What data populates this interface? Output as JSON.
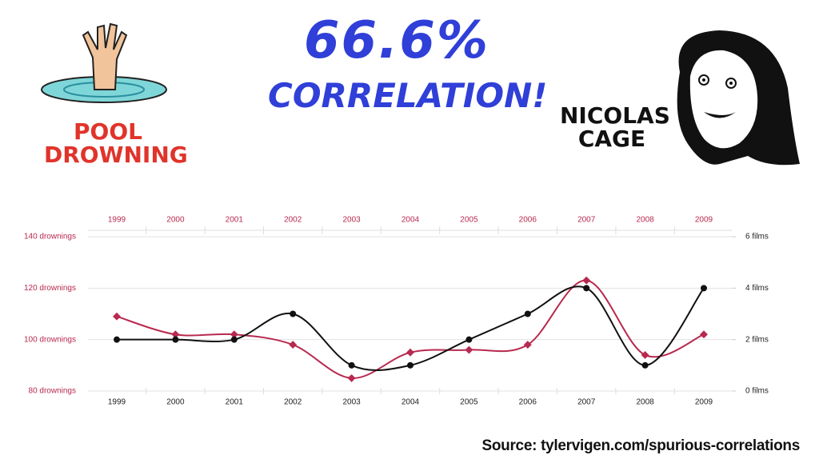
{
  "chart_data": {
    "type": "line",
    "title": "66.6%",
    "subtitle": "CORRELATION!",
    "source": "Source: tylervigen.com/spurious-correlations",
    "categories": [
      "1999",
      "2000",
      "2001",
      "2002",
      "2003",
      "2004",
      "2005",
      "2006",
      "2007",
      "2008",
      "2009"
    ],
    "series": [
      {
        "name": "POOL DROWNING",
        "color": "#b8294f",
        "values": [
          109,
          102,
          102,
          98,
          85,
          95,
          96,
          98,
          123,
          94,
          102
        ]
      },
      {
        "name": "NICOLAS CAGE",
        "color": "#111111",
        "axis": "y2",
        "values": [
          2,
          2,
          2,
          3,
          1,
          1,
          2,
          3,
          4,
          1,
          4
        ]
      }
    ],
    "ylim": [
      80,
      140
    ],
    "yticks": [
      {
        "value": 80,
        "label": "80 drownings"
      },
      {
        "value": 100,
        "label": "100 drownings"
      },
      {
        "value": 120,
        "label": "120 drownings"
      },
      {
        "value": 140,
        "label": "140 drownings"
      }
    ],
    "y2lim": [
      0,
      6
    ],
    "y2ticks": [
      {
        "value": 0,
        "label": "0 films"
      },
      {
        "value": 2,
        "label": "2 films"
      },
      {
        "value": 4,
        "label": "4 films"
      },
      {
        "value": 6,
        "label": "6 films"
      }
    ],
    "grid": true
  }
}
